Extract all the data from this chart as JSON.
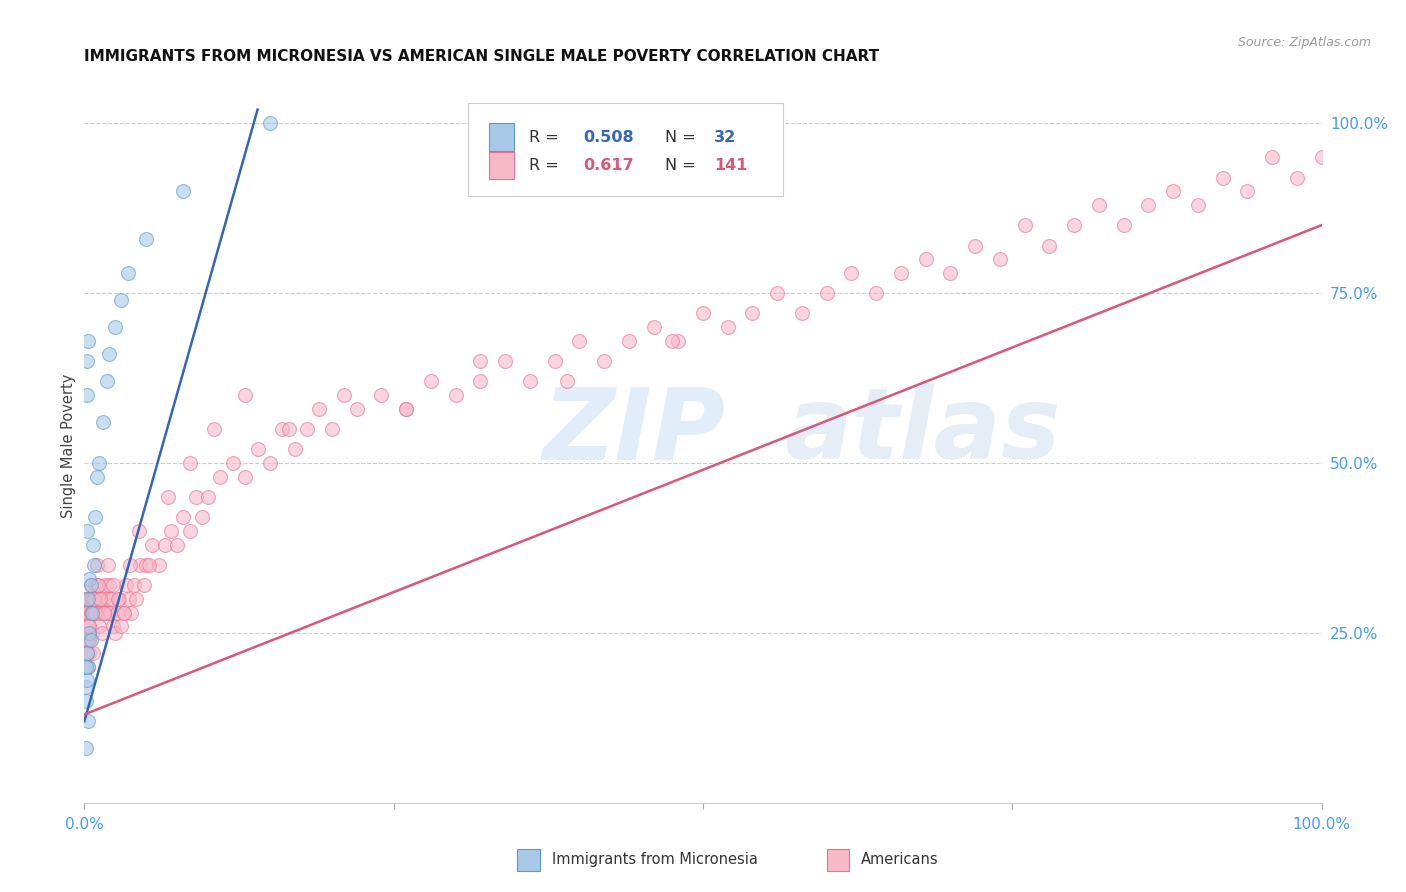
{
  "title": "IMMIGRANTS FROM MICRONESIA VS AMERICAN SINGLE MALE POVERTY CORRELATION CHART",
  "source": "Source: ZipAtlas.com",
  "ylabel": "Single Male Poverty",
  "legend_blue_label": "Immigrants from Micronesia",
  "legend_pink_label": "Americans",
  "blue_R": "0.508",
  "blue_N": "32",
  "pink_R": "0.617",
  "pink_N": "141",
  "watermark_zip": "ZIP",
  "watermark_atlas": "atlas",
  "blue_dot_color": "#a8c8e8",
  "blue_edge_color": "#5599cc",
  "blue_line_color": "#3366bb",
  "pink_dot_color": "#f7b8c8",
  "pink_edge_color": "#e87090",
  "pink_line_color": "#dd5577",
  "grid_color": "#cccccc",
  "background": "#ffffff",
  "title_color": "#111111",
  "source_color": "#999999",
  "axis_tick_color": "#4499ff",
  "ylabel_color": "#444444",
  "legend_R_color": "#000000",
  "legend_blue_val_color": "#3366bb",
  "legend_pink_val_color": "#dd5577",
  "blue_x": [
    0.001,
    0.002,
    0.002,
    0.003,
    0.003,
    0.004,
    0.004,
    0.005,
    0.005,
    0.006,
    0.007,
    0.008,
    0.009,
    0.01,
    0.012,
    0.015,
    0.018,
    0.02,
    0.025,
    0.03,
    0.035,
    0.05,
    0.08,
    0.15,
    0.002,
    0.003,
    0.001,
    0.002,
    0.003,
    0.001,
    0.002,
    0.001
  ],
  "blue_y": [
    0.17,
    0.22,
    0.6,
    0.2,
    0.3,
    0.25,
    0.33,
    0.32,
    0.24,
    0.28,
    0.38,
    0.35,
    0.42,
    0.48,
    0.5,
    0.56,
    0.62,
    0.66,
    0.7,
    0.74,
    0.78,
    0.83,
    0.9,
    1.0,
    0.65,
    0.68,
    0.15,
    0.18,
    0.12,
    0.2,
    0.4,
    0.08
  ],
  "pink_x": [
    0.001,
    0.001,
    0.001,
    0.002,
    0.002,
    0.002,
    0.003,
    0.003,
    0.003,
    0.004,
    0.004,
    0.004,
    0.005,
    0.005,
    0.006,
    0.006,
    0.007,
    0.007,
    0.008,
    0.008,
    0.009,
    0.01,
    0.01,
    0.011,
    0.012,
    0.012,
    0.013,
    0.014,
    0.015,
    0.016,
    0.017,
    0.018,
    0.019,
    0.02,
    0.021,
    0.022,
    0.023,
    0.025,
    0.026,
    0.028,
    0.03,
    0.032,
    0.034,
    0.036,
    0.038,
    0.04,
    0.042,
    0.045,
    0.048,
    0.05,
    0.055,
    0.06,
    0.065,
    0.07,
    0.075,
    0.08,
    0.085,
    0.09,
    0.095,
    0.1,
    0.11,
    0.12,
    0.13,
    0.14,
    0.15,
    0.16,
    0.17,
    0.18,
    0.19,
    0.2,
    0.22,
    0.24,
    0.26,
    0.28,
    0.3,
    0.32,
    0.34,
    0.36,
    0.38,
    0.4,
    0.42,
    0.44,
    0.46,
    0.48,
    0.5,
    0.52,
    0.54,
    0.56,
    0.58,
    0.6,
    0.62,
    0.64,
    0.66,
    0.68,
    0.7,
    0.72,
    0.74,
    0.76,
    0.78,
    0.8,
    0.82,
    0.84,
    0.86,
    0.88,
    0.9,
    0.92,
    0.94,
    0.96,
    0.98,
    1.0,
    0.002,
    0.002,
    0.003,
    0.003,
    0.004,
    0.004,
    0.005,
    0.006,
    0.007,
    0.008,
    0.009,
    0.011,
    0.013,
    0.016,
    0.019,
    0.023,
    0.027,
    0.032,
    0.037,
    0.044,
    0.052,
    0.068,
    0.085,
    0.105,
    0.13,
    0.165,
    0.21,
    0.26,
    0.32,
    0.39,
    0.475
  ],
  "pink_y": [
    0.28,
    0.3,
    0.25,
    0.22,
    0.28,
    0.3,
    0.25,
    0.2,
    0.24,
    0.22,
    0.26,
    0.3,
    0.28,
    0.32,
    0.3,
    0.25,
    0.28,
    0.22,
    0.28,
    0.3,
    0.32,
    0.3,
    0.35,
    0.32,
    0.26,
    0.3,
    0.28,
    0.25,
    0.3,
    0.28,
    0.32,
    0.28,
    0.3,
    0.32,
    0.28,
    0.3,
    0.26,
    0.25,
    0.28,
    0.3,
    0.26,
    0.28,
    0.32,
    0.3,
    0.28,
    0.32,
    0.3,
    0.35,
    0.32,
    0.35,
    0.38,
    0.35,
    0.38,
    0.4,
    0.38,
    0.42,
    0.4,
    0.45,
    0.42,
    0.45,
    0.48,
    0.5,
    0.48,
    0.52,
    0.5,
    0.55,
    0.52,
    0.55,
    0.58,
    0.55,
    0.58,
    0.6,
    0.58,
    0.62,
    0.6,
    0.62,
    0.65,
    0.62,
    0.65,
    0.68,
    0.65,
    0.68,
    0.7,
    0.68,
    0.72,
    0.7,
    0.72,
    0.75,
    0.72,
    0.75,
    0.78,
    0.75,
    0.78,
    0.8,
    0.78,
    0.82,
    0.8,
    0.85,
    0.82,
    0.85,
    0.88,
    0.85,
    0.88,
    0.9,
    0.88,
    0.92,
    0.9,
    0.95,
    0.92,
    0.95,
    0.24,
    0.22,
    0.26,
    0.28,
    0.24,
    0.26,
    0.28,
    0.3,
    0.28,
    0.3,
    0.28,
    0.32,
    0.3,
    0.28,
    0.35,
    0.32,
    0.3,
    0.28,
    0.35,
    0.4,
    0.35,
    0.45,
    0.5,
    0.55,
    0.6,
    0.55,
    0.6,
    0.58,
    0.65,
    0.62,
    0.68
  ]
}
